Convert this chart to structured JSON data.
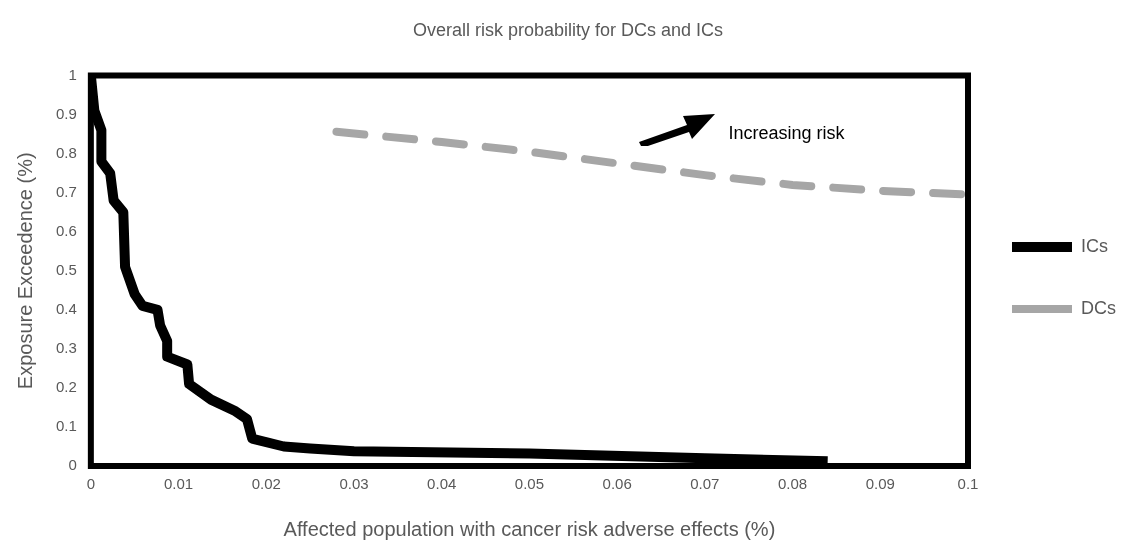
{
  "chart_data": {
    "type": "line",
    "title": "Overall risk probability for DCs and ICs",
    "xlabel": "Affected population with cancer risk adverse effects (%)",
    "ylabel": "Exposure Exceedence (%)",
    "xlim": [
      0,
      0.1
    ],
    "xticks": [
      0,
      0.01,
      0.02,
      0.03,
      0.04,
      0.05,
      0.06,
      0.07,
      0.08,
      0.09,
      0.1
    ],
    "ylim": [
      0,
      1
    ],
    "yticks": [
      0,
      0.1,
      0.2,
      0.3,
      0.4,
      0.5,
      0.6,
      0.7,
      0.8,
      0.9,
      1
    ],
    "grid": false,
    "legend": "right",
    "marker": "none",
    "annotations": [
      "Increasing risk"
    ],
    "series": [
      {
        "name": "ICs",
        "color": "#000000",
        "line_style": "solid",
        "x": [
          0,
          0.0004,
          0.0012,
          0.0012,
          0.0022,
          0.0026,
          0.0037,
          0.0039,
          0.005,
          0.0059,
          0.0076,
          0.0079,
          0.0087,
          0.0087,
          0.011,
          0.0112,
          0.0137,
          0.0165,
          0.0178,
          0.0184,
          0.022,
          0.025,
          0.03,
          0.05,
          0.07,
          0.084
        ],
        "values": [
          1,
          0.91,
          0.86,
          0.78,
          0.75,
          0.68,
          0.65,
          0.51,
          0.44,
          0.41,
          0.4,
          0.36,
          0.32,
          0.28,
          0.26,
          0.21,
          0.17,
          0.14,
          0.12,
          0.07,
          0.05,
          0.045,
          0.038,
          0.032,
          0.02,
          0.012
        ]
      },
      {
        "name": "DCs",
        "color": "#a6a6a6",
        "line_style": "dashed",
        "x": [
          0.028,
          0.04,
          0.05,
          0.06,
          0.07,
          0.08,
          0.09,
          0.1
        ],
        "values": [
          0.856,
          0.83,
          0.805,
          0.775,
          0.745,
          0.72,
          0.705,
          0.695
        ]
      }
    ]
  }
}
